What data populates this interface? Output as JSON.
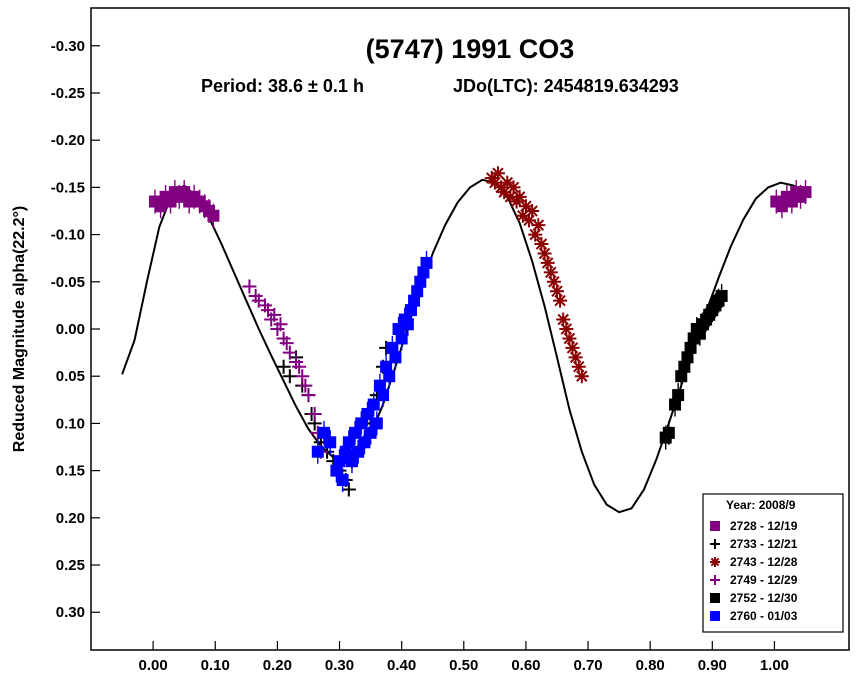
{
  "chart_data": {
    "type": "scatter",
    "title": "(5747) 1991 CO3",
    "subtitle_period": "Period: 38.6 ± 0.1 h",
    "subtitle_epoch": "JDo(LTC): 2454819.634293",
    "xlabel": "",
    "ylabel": "Reduced Magnitude alpha(22.2°)",
    "xlim": [
      -0.1,
      1.12
    ],
    "ylim": [
      -0.34,
      0.34
    ],
    "y_inverted": true,
    "grid": false,
    "legend_position": "bottom-right",
    "legend_title": "Year: 2008/9",
    "x_ticks": [
      0.0,
      0.1,
      0.2,
      0.3,
      0.4,
      0.5,
      0.6,
      0.7,
      0.8,
      0.9,
      1.0
    ],
    "x_tick_labels": [
      "0.00",
      "0.10",
      "0.20",
      "0.30",
      "0.40",
      "0.50",
      "0.60",
      "0.70",
      "0.80",
      "0.90",
      "1.00"
    ],
    "y_ticks": [
      -0.3,
      -0.25,
      -0.2,
      -0.15,
      -0.1,
      -0.05,
      0.0,
      0.05,
      0.1,
      0.15,
      0.2,
      0.25,
      0.3
    ],
    "y_tick_labels": [
      "-0.30",
      "-0.25",
      "-0.20",
      "-0.15",
      "-0.10",
      "-0.05",
      "0.00",
      "0.05",
      "0.10",
      "0.15",
      "0.20",
      "0.25",
      "0.30"
    ],
    "fit_curve": {
      "x": [
        -0.05,
        -0.03,
        -0.01,
        0.01,
        0.03,
        0.05,
        0.07,
        0.09,
        0.11,
        0.13,
        0.15,
        0.17,
        0.19,
        0.21,
        0.23,
        0.25,
        0.27,
        0.29,
        0.31,
        0.33,
        0.35,
        0.37,
        0.39,
        0.41,
        0.43,
        0.45,
        0.47,
        0.49,
        0.51,
        0.53,
        0.55,
        0.57,
        0.59,
        0.61,
        0.63,
        0.65,
        0.67,
        0.69,
        0.71,
        0.73,
        0.75,
        0.77,
        0.79,
        0.81,
        0.83,
        0.85,
        0.87,
        0.89,
        0.91,
        0.93,
        0.95,
        0.97,
        0.99,
        1.01,
        1.03,
        1.05
      ],
      "y": [
        0.048,
        0.012,
        -0.05,
        -0.108,
        -0.142,
        -0.152,
        -0.14,
        -0.118,
        -0.09,
        -0.06,
        -0.03,
        0.0,
        0.028,
        0.055,
        0.082,
        0.106,
        0.124,
        0.136,
        0.14,
        0.132,
        0.112,
        0.08,
        0.04,
        -0.002,
        -0.042,
        -0.08,
        -0.11,
        -0.134,
        -0.15,
        -0.158,
        -0.155,
        -0.14,
        -0.112,
        -0.072,
        -0.024,
        0.03,
        0.085,
        0.13,
        0.165,
        0.186,
        0.194,
        0.19,
        0.17,
        0.138,
        0.1,
        0.06,
        0.02,
        -0.018,
        -0.054,
        -0.088,
        -0.116,
        -0.138,
        -0.15,
        -0.155,
        -0.152,
        -0.146
      ]
    },
    "series": [
      {
        "name": "2728 - 12/19",
        "color": "#800080",
        "marker": "filled-square",
        "x": [
          0.003,
          0.012,
          0.02,
          0.028,
          0.035,
          0.042,
          0.05,
          0.058,
          0.066,
          0.075,
          0.083,
          0.09,
          0.097,
          1.003,
          1.012,
          1.02,
          1.028,
          1.035,
          1.042,
          1.05
        ],
        "y": [
          -0.135,
          -0.13,
          -0.14,
          -0.135,
          -0.145,
          -0.14,
          -0.145,
          -0.135,
          -0.14,
          -0.135,
          -0.13,
          -0.125,
          -0.12,
          -0.135,
          -0.13,
          -0.14,
          -0.135,
          -0.145,
          -0.14,
          -0.145
        ]
      },
      {
        "name": "2733 - 12/21",
        "color": "#000000",
        "marker": "plus",
        "x": [
          0.21,
          0.22,
          0.23,
          0.24,
          0.25,
          0.255,
          0.26,
          0.27,
          0.28,
          0.29,
          0.3,
          0.31,
          0.315,
          0.32,
          0.33,
          0.34,
          0.35,
          0.36,
          0.37,
          0.375
        ],
        "y": [
          0.04,
          0.05,
          0.03,
          0.06,
          0.07,
          0.09,
          0.1,
          0.12,
          0.13,
          0.14,
          0.15,
          0.16,
          0.17,
          0.14,
          0.13,
          0.12,
          0.1,
          0.07,
          0.04,
          0.02
        ]
      },
      {
        "name": "2743 - 12/28",
        "color": "#8b0000",
        "marker": "asterisk",
        "x": [
          0.545,
          0.55,
          0.555,
          0.56,
          0.565,
          0.57,
          0.575,
          0.58,
          0.585,
          0.59,
          0.595,
          0.6,
          0.605,
          0.61,
          0.615,
          0.62,
          0.625,
          0.63,
          0.635,
          0.64,
          0.645,
          0.65,
          0.655,
          0.66,
          0.665,
          0.67,
          0.675,
          0.68,
          0.685,
          0.69
        ],
        "y": [
          -0.16,
          -0.155,
          -0.165,
          -0.15,
          -0.145,
          -0.155,
          -0.14,
          -0.15,
          -0.135,
          -0.14,
          -0.12,
          -0.13,
          -0.115,
          -0.125,
          -0.1,
          -0.11,
          -0.09,
          -0.08,
          -0.07,
          -0.06,
          -0.05,
          -0.04,
          -0.03,
          -0.01,
          0.0,
          0.01,
          0.02,
          0.03,
          0.04,
          0.05
        ]
      },
      {
        "name": "2749 - 12/29",
        "color": "#800080",
        "marker": "plus",
        "x": [
          0.155,
          0.165,
          0.17,
          0.18,
          0.185,
          0.19,
          0.195,
          0.2,
          0.205,
          0.21,
          0.215,
          0.22,
          0.23,
          0.235,
          0.24,
          0.245,
          0.25,
          0.26,
          0.265,
          0.27
        ],
        "y": [
          -0.045,
          -0.035,
          -0.03,
          -0.025,
          -0.02,
          -0.01,
          -0.015,
          0.0,
          -0.005,
          0.01,
          0.015,
          0.025,
          0.035,
          0.04,
          0.05,
          0.06,
          0.07,
          0.09,
          0.11,
          0.13
        ]
      },
      {
        "name": "2752 - 12/30",
        "color": "#000000",
        "marker": "filled-square",
        "x": [
          0.825,
          0.83,
          0.84,
          0.845,
          0.85,
          0.855,
          0.86,
          0.865,
          0.87,
          0.875,
          0.88,
          0.885,
          0.89,
          0.895,
          0.9,
          0.905,
          0.91,
          0.915
        ],
        "y": [
          0.115,
          0.11,
          0.08,
          0.07,
          0.05,
          0.04,
          0.03,
          0.02,
          0.01,
          0.0,
          0.005,
          -0.005,
          -0.01,
          -0.015,
          -0.02,
          -0.025,
          -0.03,
          -0.035
        ]
      },
      {
        "name": "2760 - 01/03",
        "color": "#0000ff",
        "marker": "filled-square",
        "x": [
          0.265,
          0.275,
          0.285,
          0.295,
          0.3,
          0.305,
          0.31,
          0.315,
          0.32,
          0.325,
          0.33,
          0.335,
          0.34,
          0.345,
          0.35,
          0.355,
          0.36,
          0.365,
          0.37,
          0.375,
          0.38,
          0.385,
          0.39,
          0.395,
          0.4,
          0.405,
          0.41,
          0.415,
          0.42,
          0.425,
          0.43,
          0.435,
          0.44
        ],
        "y": [
          0.13,
          0.11,
          0.12,
          0.15,
          0.14,
          0.16,
          0.13,
          0.12,
          0.14,
          0.11,
          0.13,
          0.1,
          0.12,
          0.09,
          0.11,
          0.08,
          0.1,
          0.06,
          0.07,
          0.04,
          0.05,
          0.02,
          0.03,
          0.0,
          0.01,
          -0.01,
          -0.005,
          -0.02,
          -0.03,
          -0.04,
          -0.05,
          -0.06,
          -0.07
        ]
      }
    ]
  }
}
